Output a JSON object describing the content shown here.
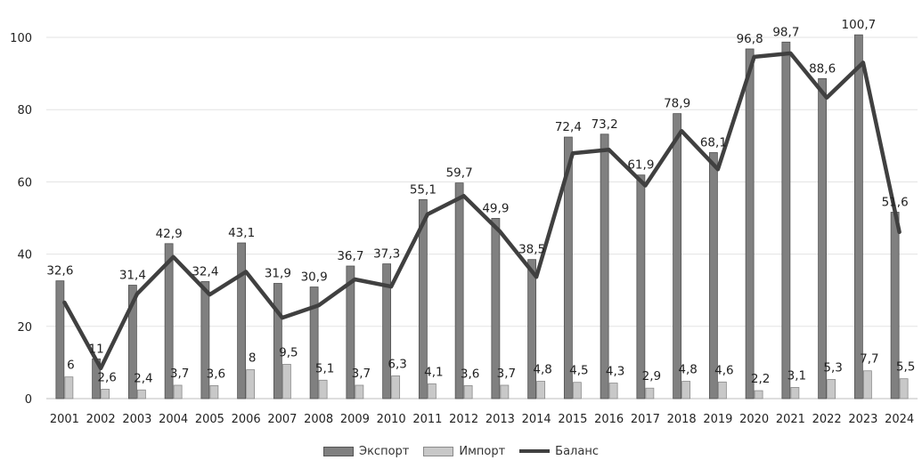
{
  "chart_data": {
    "type": "bar",
    "categories": [
      "2001",
      "2002",
      "2003",
      "2004",
      "2005",
      "2006",
      "2007",
      "2008",
      "2009",
      "2010",
      "2011",
      "2012",
      "2013",
      "2014",
      "2015",
      "2016",
      "2017",
      "2018",
      "2019",
      "2020",
      "2021",
      "2022",
      "2023",
      "2024"
    ],
    "series": [
      {
        "name": "Экспорт",
        "type": "bar",
        "color": "#808080",
        "values": [
          32.6,
          11,
          31.4,
          42.9,
          32.4,
          43.1,
          31.9,
          30.9,
          36.7,
          37.3,
          55.1,
          59.7,
          49.9,
          38.5,
          72.4,
          73.2,
          61.9,
          78.9,
          68.1,
          96.8,
          98.7,
          88.6,
          100.7,
          51.6
        ],
        "labels": [
          "32,6",
          "11",
          "31,4",
          "42,9",
          "32,4",
          "43,1",
          "31,9",
          "30,9",
          "36,7",
          "37,3",
          "55,1",
          "59,7",
          "49,9",
          "38,5",
          "72,4",
          "73,2",
          "61,9",
          "78,9",
          "68,1",
          "96,8",
          "98,7",
          "88,6",
          "100,7",
          "51,6"
        ]
      },
      {
        "name": "Импорт",
        "type": "bar",
        "color": "#c8c8c8",
        "values": [
          6,
          2.6,
          2.4,
          3.7,
          3.6,
          8,
          9.5,
          5.1,
          3.7,
          6.3,
          4.1,
          3.6,
          3.7,
          4.8,
          4.5,
          4.3,
          2.9,
          4.8,
          4.6,
          2.2,
          3.1,
          5.3,
          7.7,
          5.5
        ],
        "labels": [
          "6",
          "2,6",
          "2,4",
          "3,7",
          "3,6",
          "8",
          "9,5",
          "5,1",
          "3,7",
          "6,3",
          "4,1",
          "3,6",
          "3,7",
          "4,8",
          "4,5",
          "4,3",
          "2,9",
          "4,8",
          "4,6",
          "2,2",
          "3,1",
          "5,3",
          "7,7",
          "5,5"
        ]
      },
      {
        "name": "Баланс",
        "type": "line",
        "color": "#404040",
        "values": [
          26.6,
          8.4,
          29,
          39.2,
          28.8,
          35.1,
          22.4,
          25.8,
          33,
          31,
          51,
          56.1,
          46.2,
          33.7,
          67.9,
          68.9,
          59,
          74.1,
          63.5,
          94.6,
          95.6,
          83.3,
          93,
          46.1
        ]
      }
    ],
    "yticks": [
      0,
      20,
      40,
      60,
      80,
      100
    ],
    "ylim": [
      0,
      108
    ],
    "grid": true,
    "legend_position": "bottom"
  }
}
